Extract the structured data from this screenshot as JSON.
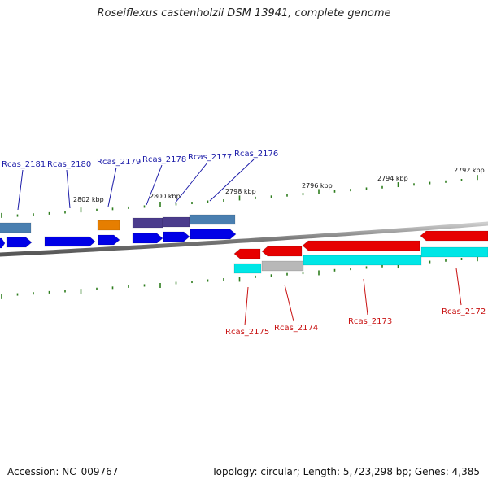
{
  "title": "Roseiflexus castenholzii DSM 13941, complete genome",
  "footer": {
    "accession": "Accession: NC_009767",
    "summary": "Topology: circular; Length: 5,723,298 bp; Genes: 4,385"
  },
  "colors": {
    "background": "#ffffff",
    "backbone": "#808080",
    "tick": "#2e7d1e",
    "forward_label": "#1a1aa8",
    "reverse_label": "#c81010",
    "forward_cds": "#0000e6",
    "reverse_cds": "#e60000",
    "gene_steelblue": "#4a7fb0",
    "gene_purple": "#4b3c8c",
    "gene_orange": "#e67e00",
    "gene_cyan": "#00e6e6",
    "gene_gray": "#b8b8b8"
  },
  "scale_labels": [
    "2802 kbp",
    "2800 kbp",
    "2798 kbp",
    "2796 kbp",
    "2794 kbp",
    "2792 kbp"
  ],
  "genes": [
    {
      "locus": "Rcas_2181",
      "strand": "forward"
    },
    {
      "locus": "Rcas_2180",
      "strand": "forward"
    },
    {
      "locus": "Rcas_2179",
      "strand": "forward"
    },
    {
      "locus": "Rcas_2178",
      "strand": "forward"
    },
    {
      "locus": "Rcas_2177",
      "strand": "forward"
    },
    {
      "locus": "Rcas_2176",
      "strand": "forward"
    },
    {
      "locus": "Rcas_2175",
      "strand": "reverse"
    },
    {
      "locus": "Rcas_2174",
      "strand": "reverse"
    },
    {
      "locus": "Rcas_2173",
      "strand": "reverse"
    },
    {
      "locus": "Rcas_2172",
      "strand": "reverse"
    }
  ]
}
